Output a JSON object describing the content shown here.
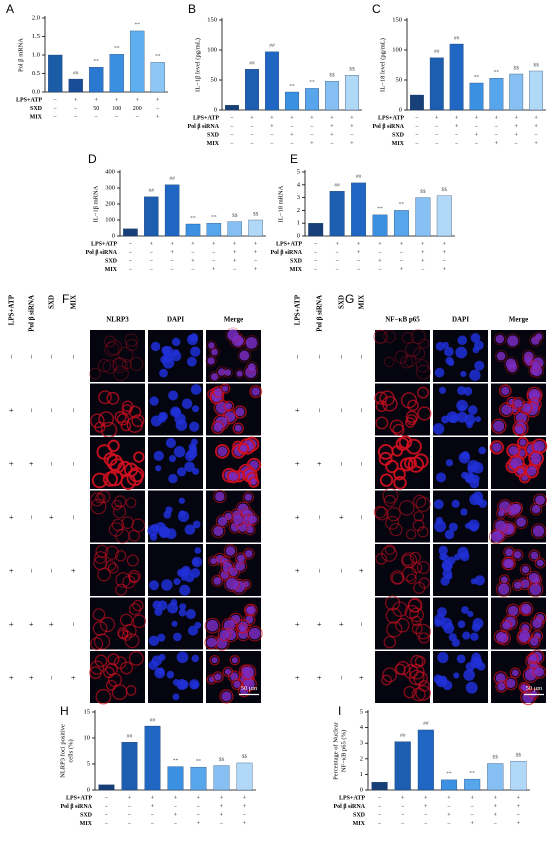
{
  "chart_data": [
    {
      "type": "bar",
      "panel": "A",
      "ylabel": [
        "Pol β mRNA"
      ],
      "ylim": [
        0,
        2
      ],
      "yticks": [
        {
          "value": 0,
          "label": "0.0"
        },
        0.5,
        {
          "value": 1,
          "label": "1.0"
        },
        1.5,
        {
          "value": 2,
          "label": "2.0"
        }
      ],
      "values": [
        1.0,
        0.35,
        0.67,
        1.02,
        1.65,
        0.8
      ],
      "colors": [
        "#1b5ca6",
        "#1a4d98",
        "#2a78cf",
        "#3a8fe0",
        "#5eaff0",
        "#8cc6f4"
      ],
      "annotations": [
        null,
        "##",
        "**",
        "**",
        "**",
        "**"
      ],
      "treatments": [
        {
          "name": "LPS+ATP",
          "signs": [
            "−",
            "+",
            "+",
            "+",
            "+",
            "+"
          ]
        },
        {
          "name": "SXD",
          "signs": [
            "−",
            "−",
            "50",
            "100",
            "200",
            "−"
          ]
        },
        {
          "name": "MIX",
          "signs": [
            "−",
            "−",
            "−",
            "−",
            "−",
            "+"
          ]
        }
      ]
    },
    {
      "type": "bar",
      "panel": "B",
      "ylabel": [
        "IL−1β level (pg/mL)"
      ],
      "ylim": [
        0,
        150
      ],
      "yticks": [
        0,
        50,
        100,
        150
      ],
      "values": [
        8,
        68,
        97,
        30,
        36,
        48,
        58
      ],
      "colors": [
        "#173f78",
        "#1d5eb0",
        "#1f67c2",
        "#3b90e2",
        "#57a6ec",
        "#86c0f2",
        "#b2d8f7"
      ],
      "annotations": [
        null,
        "##",
        "##",
        "**",
        "**",
        "$$",
        "$$"
      ],
      "treatments": [
        {
          "name": "LPS+ATP",
          "signs": [
            "−",
            "+",
            "+",
            "+",
            "+",
            "+",
            "+"
          ]
        },
        {
          "name": "Pol β siRNA",
          "signs": [
            "−",
            "−",
            "+",
            "−",
            "−",
            "+",
            "+"
          ]
        },
        {
          "name": "SXD",
          "signs": [
            "−",
            "−",
            "−",
            "+",
            "−",
            "+",
            "−"
          ]
        },
        {
          "name": "MIX",
          "signs": [
            "−",
            "−",
            "−",
            "−",
            "+",
            "−",
            "+"
          ]
        }
      ]
    },
    {
      "type": "bar",
      "panel": "C",
      "ylabel": [
        "IL−18 level (pg/mL)"
      ],
      "ylim": [
        0,
        150
      ],
      "yticks": [
        0,
        50,
        100,
        150
      ],
      "values": [
        25,
        87,
        110,
        45,
        53,
        60,
        65
      ],
      "colors": [
        "#173f78",
        "#1d5eb0",
        "#1f67c2",
        "#3b90e2",
        "#57a6ec",
        "#86c0f2",
        "#b2d8f7"
      ],
      "annotations": [
        null,
        "##",
        "##",
        "**",
        "**",
        "$$",
        "$$"
      ],
      "treatments": [
        {
          "name": "LPS+ATP",
          "signs": [
            "−",
            "+",
            "+",
            "+",
            "+",
            "+",
            "+"
          ]
        },
        {
          "name": "Pol β siRNA",
          "signs": [
            "−",
            "−",
            "+",
            "−",
            "−",
            "+",
            "+"
          ]
        },
        {
          "name": "SXD",
          "signs": [
            "−",
            "−",
            "−",
            "+",
            "−",
            "+",
            "−"
          ]
        },
        {
          "name": "MIX",
          "signs": [
            "−",
            "−",
            "−",
            "−",
            "+",
            "−",
            "+"
          ]
        }
      ]
    },
    {
      "type": "bar",
      "panel": "D",
      "ylabel": [
        "IL−1β mRNA"
      ],
      "ylim": [
        0,
        400
      ],
      "yticks": [
        0,
        100,
        200,
        300,
        400
      ],
      "values": [
        45,
        245,
        320,
        75,
        80,
        90,
        100
      ],
      "colors": [
        "#173f78",
        "#1d5eb0",
        "#1f67c2",
        "#3b90e2",
        "#57a6ec",
        "#86c0f2",
        "#b2d8f7"
      ],
      "annotations": [
        null,
        "##",
        "##",
        "**",
        "**",
        "$$",
        "$$"
      ],
      "treatments": [
        {
          "name": "LPS+ATP",
          "signs": [
            "−",
            "+",
            "+",
            "+",
            "+",
            "+",
            "+"
          ]
        },
        {
          "name": "Pol β siRNA",
          "signs": [
            "−",
            "−",
            "+",
            "−",
            "−",
            "+",
            "+"
          ]
        },
        {
          "name": "SXD",
          "signs": [
            "−",
            "−",
            "−",
            "+",
            "−",
            "+",
            "−"
          ]
        },
        {
          "name": "MIX",
          "signs": [
            "−",
            "−",
            "−",
            "−",
            "+",
            "−",
            "+"
          ]
        }
      ]
    },
    {
      "type": "bar",
      "panel": "E",
      "ylabel": [
        "IL−18 mRNA"
      ],
      "ylim": [
        0,
        5
      ],
      "yticks": [
        0,
        1,
        2,
        3,
        4,
        5
      ],
      "values": [
        1.0,
        3.5,
        4.15,
        1.65,
        2.0,
        3.0,
        3.15
      ],
      "colors": [
        "#173f78",
        "#1d5eb0",
        "#1f67c2",
        "#3b90e2",
        "#57a6ec",
        "#86c0f2",
        "#b2d8f7"
      ],
      "annotations": [
        null,
        "##",
        "##",
        "**",
        "**",
        "$$",
        "$$"
      ],
      "treatments": [
        {
          "name": "LPS+ATP",
          "signs": [
            "−",
            "+",
            "+",
            "+",
            "+",
            "+",
            "+"
          ]
        },
        {
          "name": "Pol β siRNA",
          "signs": [
            "−",
            "−",
            "+",
            "−",
            "−",
            "+",
            "+"
          ]
        },
        {
          "name": "SXD",
          "signs": [
            "−",
            "−",
            "−",
            "+",
            "−",
            "+",
            "−"
          ]
        },
        {
          "name": "MIX",
          "signs": [
            "−",
            "−",
            "−",
            "−",
            "+",
            "−",
            "+"
          ]
        }
      ]
    },
    {
      "type": "bar",
      "panel": "H",
      "ylabel": [
        "NLRP3 foci positive",
        "cells (%)"
      ],
      "ylim": [
        0,
        15
      ],
      "yticks": [
        0,
        5,
        10,
        15
      ],
      "values": [
        1,
        9.2,
        12.3,
        4.5,
        4.4,
        4.7,
        5.2
      ],
      "colors": [
        "#173f78",
        "#1d5eb0",
        "#1f67c2",
        "#3b90e2",
        "#57a6ec",
        "#86c0f2",
        "#b2d8f7"
      ],
      "annotations": [
        null,
        "##",
        "##",
        "**",
        "**",
        "$$",
        "$$"
      ],
      "treatments": [
        {
          "name": "LPS+ATP",
          "signs": [
            "−",
            "+",
            "+",
            "+",
            "+",
            "+",
            "+"
          ]
        },
        {
          "name": "Pol β siRNA",
          "signs": [
            "−",
            "−",
            "+",
            "−",
            "−",
            "+",
            "+"
          ]
        },
        {
          "name": "SXD",
          "signs": [
            "−",
            "−",
            "−",
            "+",
            "−",
            "+",
            "−"
          ]
        },
        {
          "name": "MIX",
          "signs": [
            "−",
            "−",
            "−",
            "−",
            "+",
            "−",
            "+"
          ]
        }
      ]
    },
    {
      "type": "bar",
      "panel": "I",
      "ylabel": [
        "Percentage of Nuclear",
        "NF−κB p65 (%)"
      ],
      "ylim": [
        0,
        5
      ],
      "yticks": [
        0,
        1,
        2,
        3,
        4,
        5
      ],
      "values": [
        0.5,
        3.1,
        3.85,
        0.65,
        0.7,
        1.7,
        1.85
      ],
      "colors": [
        "#173f78",
        "#1d5eb0",
        "#1f67c2",
        "#3b90e2",
        "#57a6ec",
        "#86c0f2",
        "#b2d8f7"
      ],
      "annotations": [
        null,
        "##",
        "##",
        "**",
        "**",
        "$$",
        "$$"
      ],
      "treatments": [
        {
          "name": "LPS+ATP",
          "signs": [
            "−",
            "+",
            "+",
            "+",
            "+",
            "+",
            "+"
          ]
        },
        {
          "name": "Pol β siRNA",
          "signs": [
            "−",
            "−",
            "+",
            "−",
            "−",
            "+",
            "+"
          ]
        },
        {
          "name": "SXD",
          "signs": [
            "−",
            "−",
            "−",
            "+",
            "−",
            "+",
            "−"
          ]
        },
        {
          "name": "MIX",
          "signs": [
            "−",
            "−",
            "−",
            "−",
            "+",
            "−",
            "+"
          ]
        }
      ]
    }
  ],
  "image_panels": [
    {
      "panel": "F",
      "columns": [
        "NLRP3",
        "DAPI",
        "Merge"
      ],
      "scale_bar": "50 μm",
      "treatments": [
        {
          "name": "LPS+ATP",
          "signs": [
            "−",
            "+",
            "+",
            "+",
            "+",
            "+",
            "+"
          ]
        },
        {
          "name": "Pol β siRNA",
          "signs": [
            "−",
            "−",
            "+",
            "−",
            "−",
            "+",
            "+"
          ]
        },
        {
          "name": "SXD",
          "signs": [
            "−",
            "−",
            "−",
            "+",
            "−",
            "+",
            "−"
          ]
        },
        {
          "name": "MIX",
          "signs": [
            "−",
            "−",
            "−",
            "−",
            "+",
            "−",
            "+"
          ]
        }
      ]
    },
    {
      "panel": "G",
      "columns": [
        "NF−κB p65",
        "DAPI",
        "Merge"
      ],
      "scale_bar": "50 μm",
      "treatments": [
        {
          "name": "LPS+ATP",
          "signs": [
            "−",
            "+",
            "+",
            "+",
            "+",
            "+",
            "+"
          ]
        },
        {
          "name": "Pol β siRNA",
          "signs": [
            "−",
            "−",
            "+",
            "−",
            "−",
            "+",
            "+"
          ]
        },
        {
          "name": "SXD",
          "signs": [
            "−",
            "−",
            "−",
            "+",
            "−",
            "+",
            "−"
          ]
        },
        {
          "name": "MIX",
          "signs": [
            "−",
            "−",
            "−",
            "−",
            "+",
            "−",
            "+"
          ]
        }
      ]
    }
  ]
}
